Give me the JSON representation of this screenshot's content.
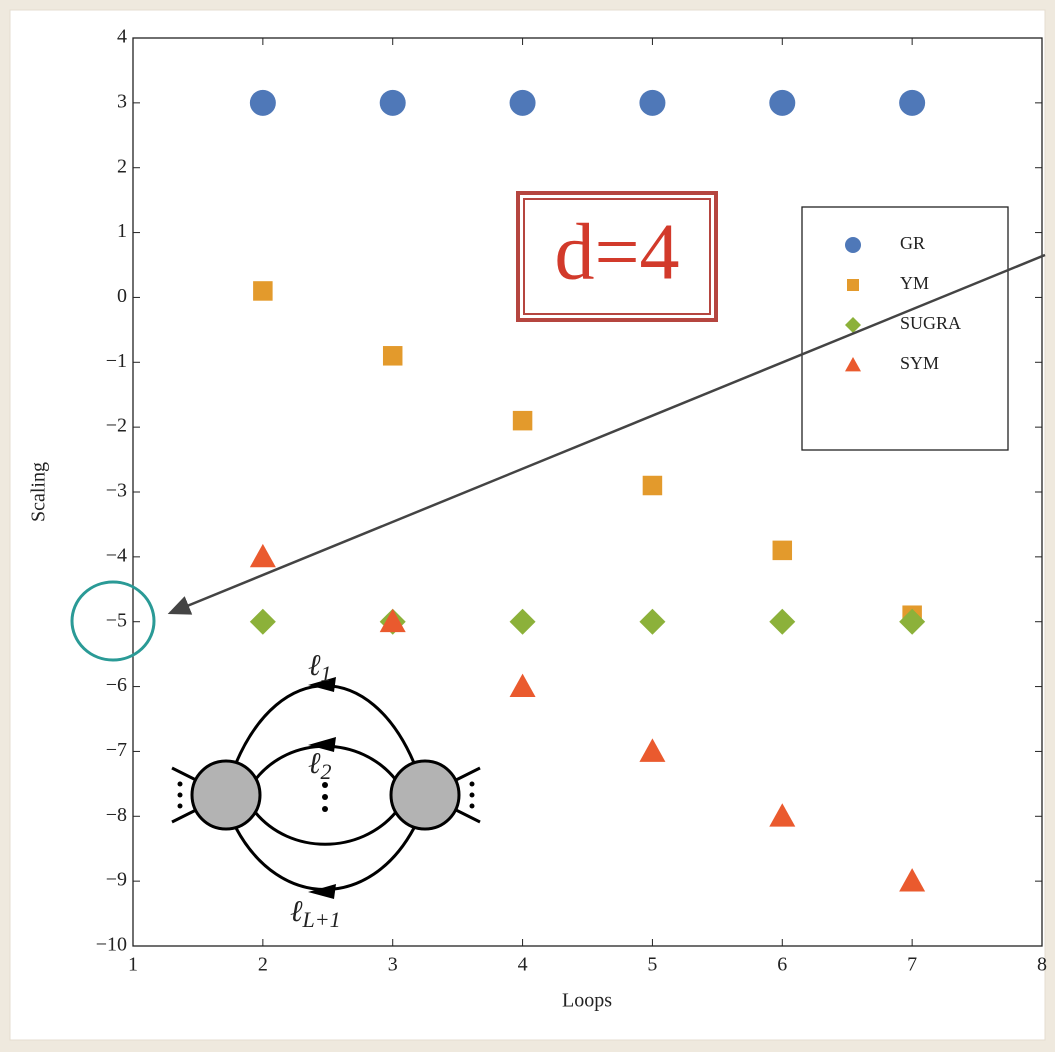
{
  "chart_data": {
    "type": "scatter",
    "xlabel": "Loops",
    "ylabel": "Scaling",
    "x": [
      2,
      3,
      4,
      5,
      6,
      7
    ],
    "series": [
      {
        "name": "GR",
        "color": "#4f78b8",
        "marker": "circle",
        "values": [
          3,
          3,
          3,
          3,
          3,
          3
        ]
      },
      {
        "name": "YM",
        "color": "#e39a2c",
        "marker": "square",
        "values": [
          0.1,
          -0.9,
          -1.9,
          -2.9,
          -3.9,
          -4.9
        ]
      },
      {
        "name": "SUGRA",
        "color": "#8cb13a",
        "marker": "diamond",
        "values": [
          -5,
          -5,
          -5,
          -5,
          -5,
          -5
        ]
      },
      {
        "name": "SYM",
        "color": "#ea5a2e",
        "marker": "triangle",
        "values": [
          -4,
          -5,
          -6,
          -7,
          -8,
          -9
        ]
      }
    ],
    "xlim": [
      1,
      8
    ],
    "xticks": [
      1,
      2,
      3,
      4,
      5,
      6,
      7,
      8
    ],
    "ylim": [
      -10,
      4
    ],
    "yticks": [
      {
        "value": -10,
        "label": "−10"
      },
      {
        "value": -9,
        "label": "−9"
      },
      {
        "value": -8,
        "label": "−8"
      },
      {
        "value": -7,
        "label": "−7"
      },
      {
        "value": -6,
        "label": "−6"
      },
      {
        "value": -5,
        "label": "−5"
      },
      {
        "value": -4,
        "label": "−4"
      },
      {
        "value": -3,
        "label": "−3"
      },
      {
        "value": -2,
        "label": "−2"
      },
      {
        "value": -1,
        "label": "−1"
      },
      0,
      1,
      2,
      3,
      4
    ],
    "grid": false,
    "annotation": "d=4",
    "inset_labels": [
      {
        "base": "ℓ",
        "sub": "1"
      },
      {
        "base": "ℓ",
        "sub": "2"
      },
      {
        "base": "ℓ",
        "sub": "L+1"
      }
    ]
  }
}
